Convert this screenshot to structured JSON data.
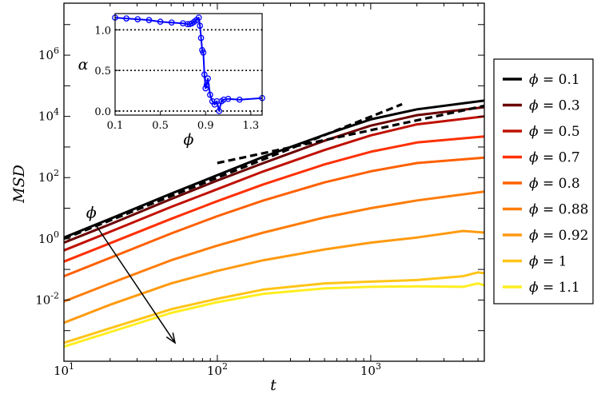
{
  "chart_data": [
    {
      "type": "line",
      "scale": "log-log",
      "xlabel": "t",
      "ylabel": "MSD",
      "xlim": [
        10,
        5500
      ],
      "ylim": [
        0.0001,
        50000000
      ],
      "xticks": [
        {
          "value": 10,
          "base": "10",
          "exp": "1"
        },
        {
          "value": 100,
          "base": "10",
          "exp": "2"
        },
        {
          "value": 1000,
          "base": "10",
          "exp": "3"
        }
      ],
      "yticks": [
        {
          "value": 0.01,
          "base": "10",
          "exp": "-2"
        },
        {
          "value": 1,
          "base": "10",
          "exp": "0"
        },
        {
          "value": 100,
          "base": "10",
          "exp": "2"
        },
        {
          "value": 10000,
          "base": "10",
          "exp": "4"
        },
        {
          "value": 1000000,
          "base": "10",
          "exp": "6"
        }
      ],
      "legend_position": "right",
      "series": [
        {
          "name": "phi = 0.1",
          "phi_label": "0.1",
          "color": "#000000",
          "x": [
            10,
            20,
            50,
            100,
            200,
            500,
            1000,
            2000,
            5500
          ],
          "y": [
            1.1,
            4.5,
            30,
            120,
            480,
            2500,
            8000,
            17000,
            33000
          ]
        },
        {
          "name": "phi = 0.3",
          "phi_label": "0.3",
          "color": "#6b0000",
          "x": [
            10,
            20,
            50,
            100,
            200,
            500,
            1000,
            2000,
            5500
          ],
          "y": [
            0.75,
            3.0,
            20,
            80,
            300,
            1600,
            5000,
            11000,
            20000
          ]
        },
        {
          "name": "phi = 0.5",
          "phi_label": "0.5",
          "color": "#bf1000",
          "x": [
            10,
            20,
            50,
            100,
            200,
            500,
            1000,
            2000,
            5500
          ],
          "y": [
            0.42,
            1.7,
            11,
            42,
            160,
            800,
            2400,
            5500,
            10000
          ]
        },
        {
          "name": "phi = 0.7",
          "phi_label": "0.7",
          "color": "#ff3000",
          "x": [
            10,
            20,
            50,
            100,
            200,
            500,
            1000,
            2000,
            5500
          ],
          "y": [
            0.18,
            0.72,
            4.5,
            17,
            60,
            270,
            700,
            1400,
            2200
          ]
        },
        {
          "name": "phi = 0.8",
          "phi_label": "0.8",
          "color": "#ff6000",
          "x": [
            10,
            20,
            50,
            100,
            200,
            500,
            1000,
            2000,
            5500
          ],
          "y": [
            0.06,
            0.24,
            1.5,
            5.5,
            18,
            70,
            160,
            300,
            450
          ]
        },
        {
          "name": "phi = 0.88",
          "phi_label": "0.88",
          "color": "#ff7c08",
          "x": [
            10,
            20,
            50,
            100,
            200,
            500,
            1000,
            2000,
            5500
          ],
          "y": [
            0.009,
            0.035,
            0.2,
            0.6,
            1.6,
            5,
            10,
            18,
            35
          ]
        },
        {
          "name": "phi = 0.92",
          "phi_label": "0.92",
          "color": "#ff9a10",
          "x": [
            10,
            20,
            50,
            100,
            200,
            500,
            1000,
            2000,
            4000,
            5500
          ],
          "y": [
            0.0018,
            0.007,
            0.035,
            0.09,
            0.2,
            0.45,
            0.75,
            1.1,
            1.8,
            1.6
          ]
        },
        {
          "name": "phi = 1",
          "phi_label": "1",
          "color": "#ffc418",
          "x": [
            10,
            20,
            50,
            100,
            200,
            500,
            1000,
            2000,
            4000,
            5000,
            5500
          ],
          "y": [
            0.0004,
            0.0012,
            0.005,
            0.011,
            0.022,
            0.035,
            0.04,
            0.045,
            0.06,
            0.08,
            0.075
          ]
        },
        {
          "name": "phi = 1.1",
          "phi_label": "1.1",
          "color": "#ffee20",
          "x": [
            10,
            20,
            50,
            100,
            200,
            500,
            1000,
            2000,
            4000,
            5000,
            5500
          ],
          "y": [
            0.0003,
            0.0009,
            0.0038,
            0.0085,
            0.016,
            0.024,
            0.027,
            0.028,
            0.027,
            0.035,
            0.03
          ]
        }
      ],
      "reference_lines": [
        {
          "name": "ballistic-guide",
          "x": [
            10,
            1600
          ],
          "y": [
            1.0,
            25000
          ]
        },
        {
          "name": "diffusive-guide",
          "x": [
            100,
            5500
          ],
          "y": [
            300,
            22000
          ]
        }
      ],
      "annotation": {
        "label": "ϕ",
        "from": {
          "x": 16,
          "y": 3.0
        },
        "to": {
          "x": 53,
          "y": 0.0004
        }
      }
    },
    {
      "type": "line",
      "xlabel": "ϕ",
      "ylabel": "α",
      "xlim": [
        0.1,
        1.4
      ],
      "ylim": [
        -0.05,
        1.2
      ],
      "xticks": [
        "0.1",
        "0.5",
        "0.9",
        "1.3"
      ],
      "yticks": [
        "0.0",
        "0.5",
        "1.0"
      ],
      "reference_y": [
        0,
        0.5,
        1.0
      ],
      "series": [
        {
          "name": "alpha",
          "color": "#0000ff",
          "x": [
            0.1,
            0.2,
            0.3,
            0.4,
            0.5,
            0.6,
            0.7,
            0.74,
            0.76,
            0.78,
            0.8,
            0.82,
            0.84,
            0.85,
            0.86,
            0.87,
            0.88,
            0.89,
            0.9,
            0.91,
            0.92,
            0.94,
            0.96,
            0.98,
            1.0,
            1.02,
            1.04,
            1.06,
            1.1,
            1.2,
            1.4
          ],
          "y": [
            1.15,
            1.14,
            1.13,
            1.12,
            1.1,
            1.09,
            1.08,
            1.07,
            1.07,
            1.08,
            1.1,
            1.12,
            1.15,
            1.05,
            0.9,
            0.75,
            0.72,
            0.45,
            0.28,
            0.32,
            0.4,
            0.2,
            0.12,
            0.08,
            0.12,
            0.0,
            0.12,
            0.14,
            0.15,
            0.14,
            0.16
          ]
        }
      ]
    }
  ]
}
